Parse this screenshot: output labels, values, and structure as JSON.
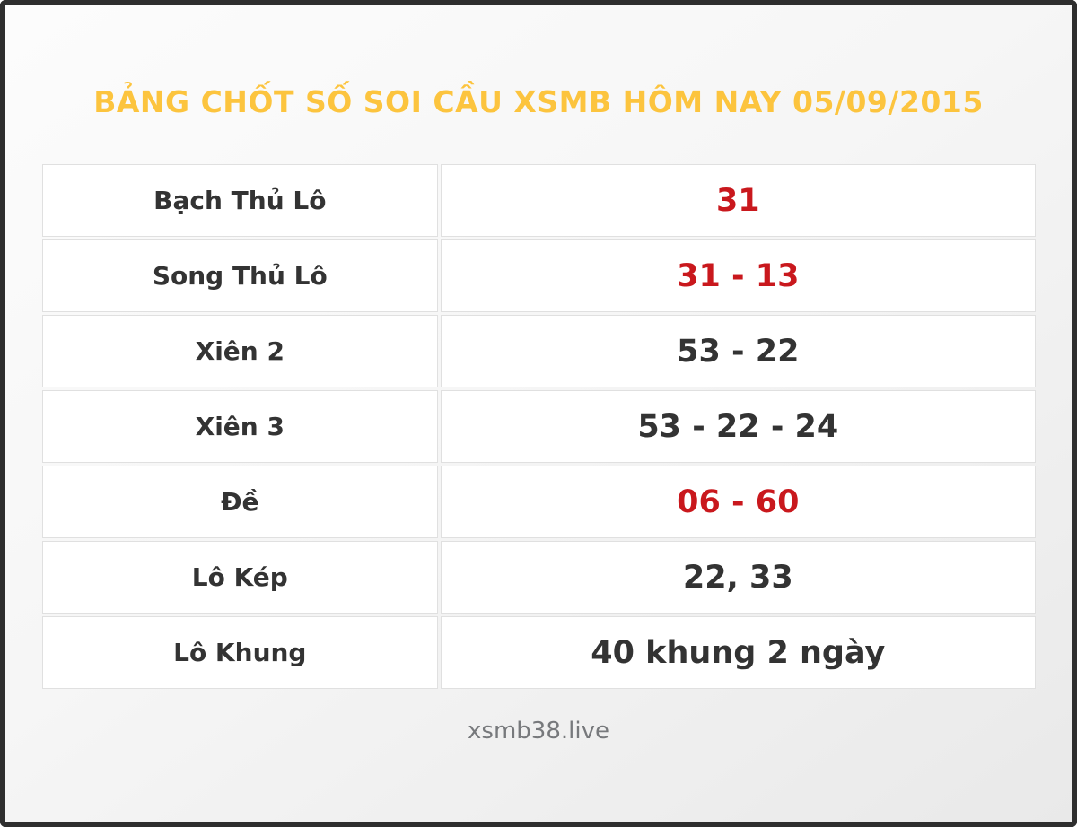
{
  "title": "BẢNG CHỐT SỐ SOI CẦU XSMB HÔM NAY 05/09/2015",
  "footer": {
    "site_name": "xsmb38.live"
  },
  "colors": {
    "title": "#fcc43e",
    "highlight": "#c9181d",
    "text": "#333333",
    "footer_text": "#77797c",
    "frame_border": "#2e2e2e",
    "cell_border": "#e0e0e0"
  },
  "chart_data": {
    "type": "table",
    "title": "BẢNG CHỐT SỐ SOI CẦU XSMB HÔM NAY 05/09/2015",
    "columns": [
      "label",
      "value"
    ],
    "rows": [
      {
        "label": "Bạch Thủ Lô",
        "value": "31",
        "highlight": true
      },
      {
        "label": "Song Thủ Lô",
        "value": "31 - 13",
        "highlight": true
      },
      {
        "label": "Xiên 2",
        "value": "53 - 22",
        "highlight": false
      },
      {
        "label": "Xiên 3",
        "value": "53 - 22 - 24",
        "highlight": false
      },
      {
        "label": "Đề",
        "value": "06 - 60",
        "highlight": true
      },
      {
        "label": "Lô Kép",
        "value": "22, 33",
        "highlight": false
      },
      {
        "label": "Lô Khung",
        "value": "40 khung 2 ngày",
        "highlight": false
      }
    ]
  }
}
